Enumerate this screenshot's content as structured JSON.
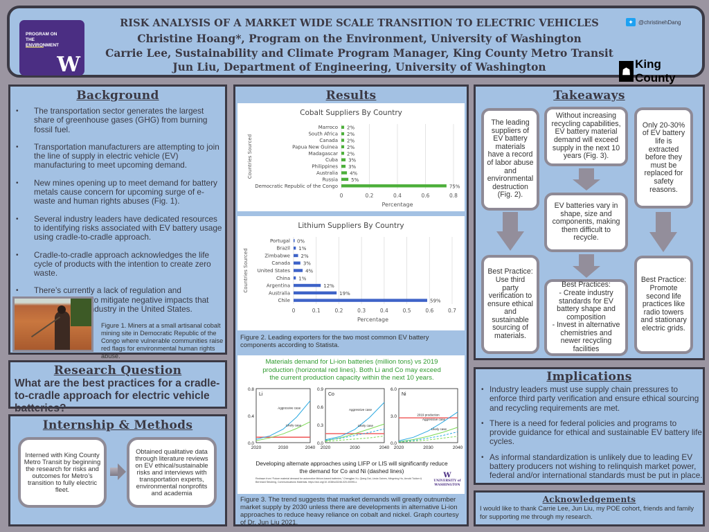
{
  "header": {
    "logo_text": "PROGRAM ON THE ENVIRONMENT",
    "logo_letter": "W",
    "title": "RISK ANALYSIS OF A MARKET WIDE SCALE TRANSITION TO ELECTRIC VEHICLES",
    "authors": [
      "Christine Hoang*, Program on the Environment, University of Washington",
      "Carrie Lee, Sustainability and Climate Program Manager, King County Metro Transit",
      "Jun Liu, Department of Engineering, University of Washington"
    ],
    "twitter_handle": "@christinehDang",
    "twitter_icon": "twitter-bird-icon",
    "partner_logo": "King County"
  },
  "background": {
    "heading": "Background",
    "bullets": [
      "The transportation sector generates the largest share of greenhouse gases (GHG) from burning fossil fuel.",
      "Transportation manufacturers are attempting to join the line of supply in electric vehicle (EV) manufacturing to meet upcoming demand.",
      "New mines opening up to meet demand for battery metals cause concern for upcoming surge of e-waste and human rights abuses (Fig. 1).",
      "Several industry leaders have dedicated resources to identifying risks associated with EV battery usage using cradle-to-cradle approach.",
      "Cradle-to-cradle approach acknowledges the life cycle of products with the intention to create zero waste.",
      "There’s currently a lack of regulation and standardization to mitigate negative impacts that come from EV industry in the United States."
    ],
    "figure1_caption": "Figure 1. Miners at a small artisanal cobalt mining site in Democratic Republic of the Congo where vulnerable communities raise red flags for environmental human rights abuse."
  },
  "research_question": {
    "heading": "Research Question",
    "text": "What are the best practices for a cradle-to-cradle approach for electric vehicle batteries?"
  },
  "methods": {
    "heading": "Internship & Methods",
    "steps": [
      "Interned with King County Metro Transit by beginning the research for risks and outcomes for Metro’s transition to fully electric fleet.",
      "Obtained qualitative data through literature reviews on EV ethical/sustainable risks and interviews with transportation experts, environmental nonprofits and academia"
    ]
  },
  "results": {
    "heading": "Results",
    "figure2_caption": "Figure 2. Leading exporters for the two most common EV battery components according to Statista.",
    "figure3_caption": "Figure 3. The trend suggests that market demands will greatly outnumber market supply by 2030 unless there are developments in alternative Li-ion approaches to reduce heavy reliance on cobalt and nickel. Graph courtesy of Dr. Jun Liu 2021.",
    "figure3_note": "Developing alternate approaches using LIFP or LIS will significantly reduce the demand for Co and Ni (dashed lines)",
    "figure3_citation": "Redrawn from “Future material demand for automotive lithium-based batteries,” Chengjian Xu, Qiang Dai, Linda Gaines, Mingming Hu, Arnold Tukker & Bernhard Steubing, Communications Materials. https://doi.org/10.1038/s43246-020-00095-x.",
    "uw_logo": "UNIVERSITY of WASHINGTON"
  },
  "chart_data": [
    {
      "type": "bar",
      "orientation": "horizontal",
      "title": "Cobalt Suppliers By Country",
      "xlabel": "Percentage",
      "ylabel": "Countries Sourced",
      "xlim": [
        0,
        0.8
      ],
      "xticks": [
        "0",
        "0.2",
        "0.4",
        "0.6",
        "0.8"
      ],
      "grid": true,
      "color": "#4caf3a",
      "categories": [
        "Marroco",
        "South Africa",
        "Canada",
        "Papua New Guinea",
        "Madagascar",
        "Cuba",
        "Philippines",
        "Australia",
        "Russia",
        "Democratic Republic of the Congo"
      ],
      "values": [
        0.02,
        0.02,
        0.02,
        0.02,
        0.02,
        0.03,
        0.03,
        0.04,
        0.05,
        0.75
      ],
      "labels": [
        "2%",
        "2%",
        "2%",
        "2%",
        "2%",
        "3%",
        "3%",
        "4%",
        "5%",
        "75%"
      ]
    },
    {
      "type": "bar",
      "orientation": "horizontal",
      "title": "Lithium Suppliers By Country",
      "xlabel": "Percentage",
      "ylabel": "Countries Sourced",
      "xlim": [
        0,
        0.7
      ],
      "xticks": [
        "0",
        "0.1",
        "0.2",
        "0.3",
        "0.4",
        "0.5",
        "0.6",
        "0.7"
      ],
      "grid": true,
      "color": "#3e63c8",
      "categories": [
        "Portugal",
        "Brazil",
        "Zimbabwe",
        "Canada",
        "United States",
        "China",
        "Argentina",
        "Australia",
        "Chile"
      ],
      "values": [
        0.003,
        0.01,
        0.02,
        0.03,
        0.04,
        0.01,
        0.12,
        0.19,
        0.59
      ],
      "labels": [
        "0%",
        "1%",
        "2%",
        "3%",
        "4%",
        "1%",
        "12%",
        "19%",
        "59%"
      ]
    },
    {
      "type": "line",
      "title": "Materials demand for Li-ion batteries (million tons) vs 2019 production (horizontal red lines). Both Li and Co may exceed the current production capacity within the next 10 years.",
      "title_color": "#2e9a2e",
      "x": [
        2020,
        2025,
        2030,
        2035,
        2040
      ],
      "xticks": [
        "2020",
        "2030",
        "2040"
      ],
      "panels": [
        {
          "name": "Li",
          "ylim": [
            0,
            0.8
          ],
          "yticks": [
            "0.0",
            "0.4",
            "0.8"
          ],
          "production_2019": 0.08,
          "series": [
            {
              "name": "Aggressive case",
              "color": "#29a8e0",
              "dashed": false,
              "values": [
                0.05,
                0.1,
                0.2,
                0.38,
                0.62
              ]
            },
            {
              "name": "Likely case",
              "color": "#7ed957",
              "dashed": false,
              "values": [
                0.03,
                0.07,
                0.13,
                0.21,
                0.31
              ]
            }
          ]
        },
        {
          "name": "Co",
          "ylim": [
            0,
            0.9
          ],
          "yticks": [
            "0.0",
            "0.3",
            "0.6",
            "0.9"
          ],
          "production_2019": 0.15,
          "series": [
            {
              "name": "Aggressive case",
              "color": "#29a8e0",
              "dashed": false,
              "values": [
                0.05,
                0.1,
                0.22,
                0.42,
                0.67
              ]
            },
            {
              "name": "Likely case",
              "color": "#7ed957",
              "dashed": false,
              "values": [
                0.03,
                0.08,
                0.15,
                0.23,
                0.31
              ]
            },
            {
              "name": "",
              "color": "#29a8e0",
              "dashed": true,
              "values": [
                0.04,
                0.07,
                0.12,
                0.17,
                0.23
              ]
            },
            {
              "name": "",
              "color": "#7ed957",
              "dashed": true,
              "values": [
                0.02,
                0.04,
                0.06,
                0.08,
                0.11
              ]
            }
          ]
        },
        {
          "name": "Ni",
          "ylim": [
            0,
            6.0
          ],
          "yticks": [
            "0.0",
            "3.0",
            "6.0"
          ],
          "production_2019": 2.75,
          "production_label": "2019 production",
          "series": [
            {
              "name": "Aggressive case",
              "color": "#29a8e0",
              "dashed": false,
              "values": [
                0.2,
                0.6,
                1.3,
                2.3,
                3.4
              ]
            },
            {
              "name": "Likely case",
              "color": "#7ed957",
              "dashed": false,
              "values": [
                0.1,
                0.35,
                0.7,
                1.15,
                1.7
              ]
            },
            {
              "name": "",
              "color": "#29a8e0",
              "dashed": true,
              "values": [
                0.1,
                0.25,
                0.5,
                0.8,
                1.2
              ]
            },
            {
              "name": "",
              "color": "#7ed957",
              "dashed": true,
              "values": [
                0.05,
                0.15,
                0.3,
                0.5,
                0.7
              ]
            }
          ]
        }
      ]
    }
  ],
  "takeaways": {
    "heading": "Takeaways",
    "cards": [
      "The leading suppliers of EV battery materials have a record of labor abuse and environmental destruction (Fig. 2).",
      "Without increasing recycling capabilities, EV battery material demand will exceed supply in the next 10 years (Fig. 3).",
      "Only 20-30% of EV battery life is extracted before they must be replaced for safety reasons.",
      "EV batteries vary in shape, size and components, making them difficult to recycle.",
      "Best Practice: Use third party verification to ensure ethical and sustainable sourcing of materials.",
      "Best Practices:\n- Create industry standards for EV battery shape and composition\n- Invest in alternative chemistries and newer recycling facilities",
      "Best Practice: Promote second life practices like radio towers and stationary electric grids."
    ]
  },
  "implications": {
    "heading": "Implications",
    "bullets": [
      "Industry leaders must use supply chain pressures to enforce third party verification and ensure ethical sourcing and recycling requirements are met.",
      "There is a need for federal policies and programs to provide guidance for ethical and sustainable EV battery life cycles.",
      "As informal standardization is unlikely due to leading EV battery producers not wishing to relinquish market power, federal and/or international standards must be put in place."
    ]
  },
  "acknowledgements": {
    "heading": "Acknowledgements",
    "text": "I would like to thank Carrie Lee, Jun Liu, my POE cohort, friends and family for supporting me through my research."
  },
  "colors": {
    "panel": "#a3c1e3",
    "border": "#3b3944",
    "background": "#9b95a1",
    "uw_purple": "#4b2e83"
  }
}
